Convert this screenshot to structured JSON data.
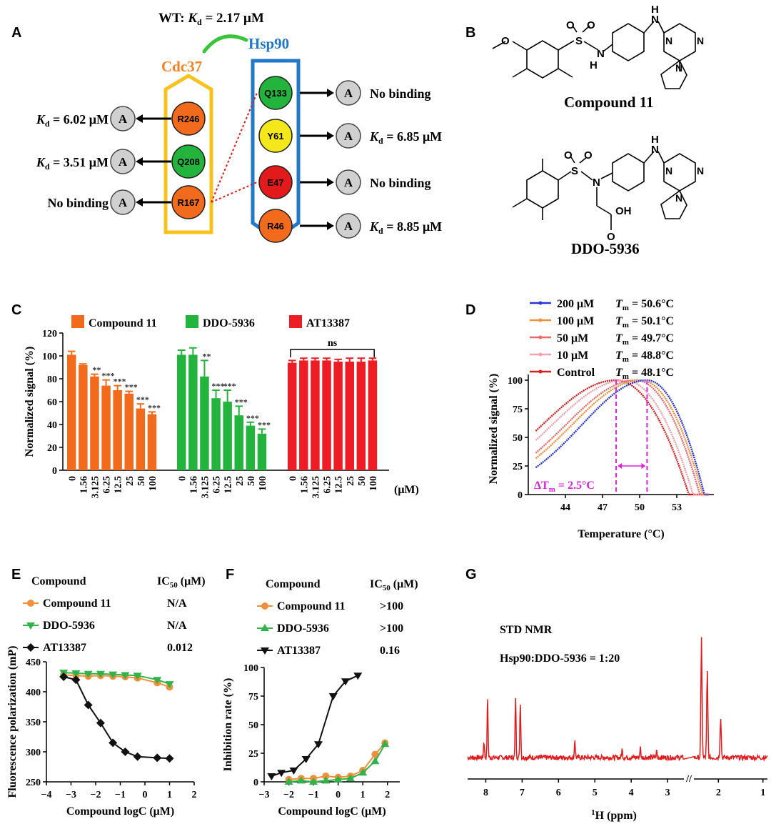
{
  "panels": {
    "A": "A",
    "B": "B",
    "C": "C",
    "D": "D",
    "E": "E",
    "F": "F",
    "G": "G"
  },
  "panel_a": {
    "wt_label": "WT: ",
    "kd_K": "K",
    "kd_sub": "d",
    "wt_value": " = 2.17 μM",
    "cdc37_title": "Cdc37",
    "hsp90_title": "Hsp90",
    "cdc37_residues": [
      {
        "name": "R246",
        "result_prefix": "K",
        "result_sub": "d",
        "result_value": " = 6.02 μM",
        "color": "#f26b1d"
      },
      {
        "name": "Q208",
        "result_prefix": "K",
        "result_sub": "d",
        "result_value": " = 3.51 μM",
        "color": "#22b43c"
      },
      {
        "name": "R167",
        "result_prefix": "",
        "result_sub": "",
        "result_value": "No binding",
        "color": "#f26b1d"
      }
    ],
    "hsp90_residues": [
      {
        "name": "Q133",
        "result_prefix": "",
        "result_sub": "",
        "result_value": "No binding",
        "color": "#22b43c"
      },
      {
        "name": "Y61",
        "result_prefix": "K",
        "result_sub": "d",
        "result_value": " = 6.85 μM",
        "color": "#f5e81a"
      },
      {
        "name": "E47",
        "result_prefix": "",
        "result_sub": "",
        "result_value": "No binding",
        "color": "#e31a1c"
      },
      {
        "name": "R46",
        "result_prefix": "K",
        "result_sub": "d",
        "result_value": " = 8.85 μM",
        "color": "#f26b1d"
      }
    ],
    "alanine": "A",
    "colors": {
      "cdc37": "#f58220",
      "hsp90": "#1f78c8",
      "cdc37_box": "#f7c21b",
      "link": "#3ac43a",
      "alanine": "#d0d0d0"
    }
  },
  "panel_b": {
    "compound1": "Compound 11",
    "compound2": "DDO-5936",
    "atoms": {
      "O": "O",
      "S": "S",
      "N": "N",
      "H": "H",
      "NH": "H",
      "OH": "OH"
    }
  },
  "chart_data": [
    {
      "id": "C",
      "type": "bar",
      "ylabel": "Normalized signal (%)",
      "xlabel_unit": "(μM)",
      "ylim": [
        0,
        120
      ],
      "yticks": [
        0,
        20,
        40,
        60,
        80,
        100,
        120
      ],
      "categories": [
        "0",
        "1.56",
        "3.125",
        "6.25",
        "12.5",
        "25",
        "50",
        "100"
      ],
      "legend": [
        "Compound 11",
        "DDO-5936",
        "AT13387"
      ],
      "series": [
        {
          "name": "Compound 11",
          "color": "#f26b1d",
          "values": [
            101,
            92,
            82,
            74,
            70,
            67,
            54,
            49
          ],
          "err": [
            3,
            1,
            2,
            5,
            4,
            2,
            4,
            2
          ],
          "sig": [
            "",
            "",
            "**",
            "***",
            "***",
            "***",
            "***",
            "***"
          ]
        },
        {
          "name": "DDO-5936",
          "color": "#22b43c",
          "values": [
            101,
            101,
            82,
            63,
            60,
            48,
            39,
            32
          ],
          "err": [
            4,
            6,
            14,
            7,
            10,
            8,
            3,
            4
          ],
          "sig": [
            "",
            "",
            "**",
            "***",
            "***",
            "***",
            "***",
            "***"
          ]
        },
        {
          "name": "AT13387",
          "color": "#ee1c24",
          "values": [
            94,
            96,
            96,
            96,
            95,
            95,
            95,
            96
          ],
          "err": [
            2,
            2,
            2,
            2,
            2,
            3,
            3,
            2
          ],
          "sig": [
            "",
            "",
            "",
            "",
            "",
            "",
            "",
            ""
          ]
        }
      ],
      "bracket_label": "ns"
    },
    {
      "id": "D",
      "type": "line",
      "ylabel": "Normalized signal (%)",
      "xlabel": "Temperature (°C)",
      "xlim": [
        41,
        56
      ],
      "xticks": [
        44,
        47,
        50,
        53
      ],
      "ylim": [
        0,
        105
      ],
      "yticks": [
        0,
        25,
        50,
        75,
        100
      ],
      "series": [
        {
          "name": "200 μM",
          "tm": "= 50.6°C",
          "tm_value": 50.6,
          "color": "#2b35d6",
          "sigma_left": 5.3,
          "sigma_right": 2.6
        },
        {
          "name": "100 μM",
          "tm": "= 50.1°C",
          "tm_value": 50.1,
          "color": "#f0903a",
          "sigma_left": 5.6,
          "sigma_right": 2.8
        },
        {
          "name": "50 μM",
          "tm": "= 49.7°C",
          "tm_value": 49.7,
          "color": "#e86a6a",
          "sigma_left": 5.7,
          "sigma_right": 2.9
        },
        {
          "name": "10 μM",
          "tm": "= 48.8°C",
          "tm_value": 48.8,
          "color": "#f0a0b0",
          "sigma_left": 5.9,
          "sigma_right": 3.1
        },
        {
          "name": "Control",
          "tm": "= 48.1°C",
          "tm_value": 48.1,
          "color": "#d81e1e",
          "sigma_left": 6.0,
          "sigma_right": 3.3
        }
      ],
      "tm_prefix": "T",
      "tm_sub": "m",
      "delta_label": "ΔT",
      "delta_sub": "m",
      "delta_value": " = 2.5°C",
      "delta_color": "#e020e0",
      "marker_x": [
        48.1,
        50.6
      ]
    },
    {
      "id": "E",
      "type": "line",
      "ylabel": "Fluorescence polarization (mP)",
      "xlabel": "Compound logC (μM)",
      "xlim": [
        -4,
        2
      ],
      "xticks": [
        -4,
        -3,
        -2,
        -1,
        0,
        1,
        2
      ],
      "ylim": [
        250,
        450
      ],
      "yticks": [
        250,
        300,
        350,
        400,
        450
      ],
      "table_header": [
        "Compound",
        "IC",
        "50",
        " (μM)"
      ],
      "series": [
        {
          "name": "Compound 11",
          "ic50": "N/A",
          "color": "#f0903a",
          "marker": "circle",
          "x": [
            -3.3,
            -2.8,
            -2.3,
            -1.8,
            -1.3,
            -0.8,
            -0.3,
            0.5,
            1.0
          ],
          "y": [
            428,
            427,
            426,
            427,
            426,
            425,
            423,
            415,
            408
          ]
        },
        {
          "name": "DDO-5936",
          "ic50": "N/A",
          "color": "#2fb34a",
          "marker": "triangle-down",
          "x": [
            -3.3,
            -2.8,
            -2.3,
            -1.8,
            -1.3,
            -0.8,
            -0.3,
            0.5,
            1.0
          ],
          "y": [
            432,
            431,
            430,
            430,
            429,
            428,
            427,
            420,
            413
          ]
        },
        {
          "name": "AT13387",
          "ic50": "0.012",
          "color": "#111111",
          "marker": "diamond",
          "x": [
            -3.3,
            -2.8,
            -2.3,
            -1.8,
            -1.3,
            -0.8,
            -0.3,
            0.5,
            1.0
          ],
          "y": [
            425,
            420,
            378,
            348,
            315,
            300,
            292,
            290,
            289
          ]
        }
      ]
    },
    {
      "id": "F",
      "type": "line",
      "ylabel": "Inhibition rate (%)",
      "xlabel": "Compound  logC (μM)",
      "xlim": [
        -3,
        2.5
      ],
      "xticks": [
        -3,
        -2,
        -1,
        0,
        1,
        2
      ],
      "ylim": [
        0,
        100
      ],
      "yticks": [
        0,
        25,
        50,
        75,
        100
      ],
      "table_header": [
        "Compound",
        "IC",
        "50",
        " (μM)"
      ],
      "series": [
        {
          "name": "Compound 11",
          "ic50": ">100",
          "color": "#f0903a",
          "marker": "circle",
          "x": [
            -2.0,
            -1.5,
            -1.0,
            -0.5,
            0.0,
            0.5,
            1.0,
            1.5,
            1.9
          ],
          "y": [
            2,
            3,
            3,
            5,
            4,
            5,
            10,
            24,
            34
          ]
        },
        {
          "name": "DDO-5936",
          "ic50": ">100",
          "color": "#2fb34a",
          "marker": "triangle-up",
          "x": [
            -2.0,
            -1.5,
            -1.0,
            -0.5,
            0.0,
            0.5,
            1.0,
            1.5,
            1.9
          ],
          "y": [
            0,
            1,
            0,
            1,
            2,
            3,
            8,
            18,
            33
          ]
        },
        {
          "name": "AT13387",
          "ic50": "0.16",
          "color": "#111111",
          "marker": "triangle-down",
          "x": [
            -2.7,
            -2.3,
            -1.8,
            -1.3,
            -0.8,
            -0.2,
            0.3,
            0.8
          ],
          "y": [
            5,
            8,
            10,
            20,
            33,
            75,
            88,
            93
          ]
        }
      ]
    },
    {
      "id": "G",
      "type": "line",
      "title": "STD NMR",
      "subtitle": "Hsp90:DDO-5936 = 1:20",
      "xlabel_sup": "1",
      "xlabel": "H (ppm)",
      "xticks": [
        8,
        7,
        6,
        5,
        4,
        3,
        2,
        1
      ],
      "color": "#e41a1c",
      "peaks": [
        {
          "ppm": 8.05,
          "h": 0.2
        },
        {
          "ppm": 7.95,
          "h": 0.72
        },
        {
          "ppm": 7.18,
          "h": 0.74
        },
        {
          "ppm": 7.05,
          "h": 0.68
        },
        {
          "ppm": 5.55,
          "h": 0.22
        },
        {
          "ppm": 4.25,
          "h": 0.1
        },
        {
          "ppm": 3.75,
          "h": 0.12
        },
        {
          "ppm": 3.3,
          "h": 0.08
        },
        {
          "ppm": 2.38,
          "h": 1.45
        },
        {
          "ppm": 2.25,
          "h": 1.05
        },
        {
          "ppm": 1.95,
          "h": 0.5
        }
      ]
    }
  ]
}
